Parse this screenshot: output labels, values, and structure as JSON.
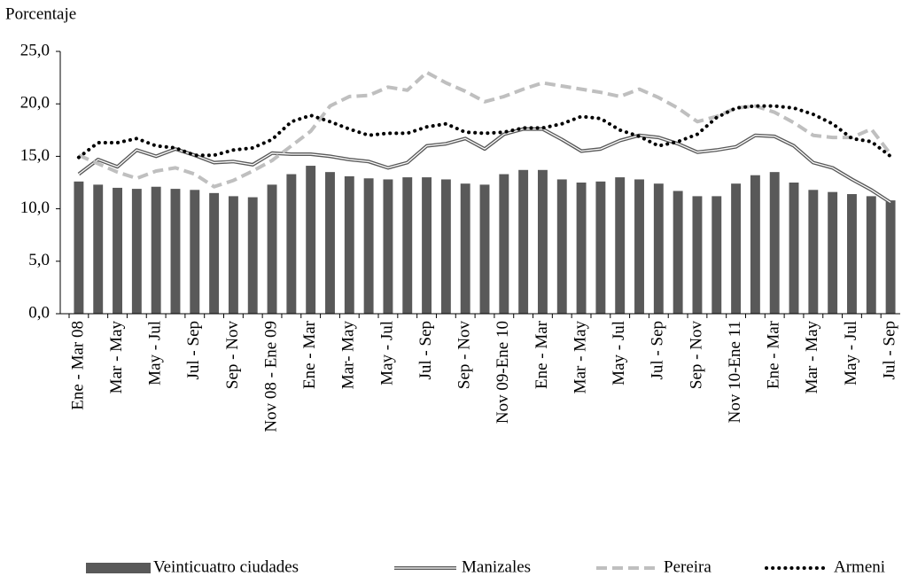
{
  "chart_data": {
    "type": "bar-line",
    "y_label": "Porcentaje",
    "categories": [
      "Ene - Mar 08",
      null,
      "Mar - May",
      null,
      "May - Jul",
      null,
      "Jul - Sep",
      null,
      "Sep - Nov",
      null,
      "Nov 08 - Ene 09",
      null,
      "Ene - Mar",
      null,
      "Mar- May",
      null,
      "May - Jul",
      null,
      "Jul - Sep",
      null,
      "Sep - Nov",
      null,
      "Nov 09-Ene 10",
      null,
      "Ene - Mar",
      null,
      "Mar - May",
      null,
      "May - Jul",
      null,
      "Jul - Sep",
      null,
      "Sep - Nov",
      null,
      "Nov 10-Ene 11",
      null,
      "Ene - Mar",
      null,
      "Mar - May",
      null,
      "May - Jul",
      null,
      "Jul - Sep"
    ],
    "series": [
      {
        "name": "Veinticuatro ciudades",
        "color": "#595959",
        "style": "bar",
        "values": [
          12.6,
          12.3,
          12.0,
          11.9,
          12.1,
          11.9,
          11.8,
          11.5,
          11.2,
          11.1,
          12.3,
          13.3,
          14.1,
          13.5,
          13.1,
          12.9,
          12.8,
          13.0,
          13.0,
          12.8,
          12.4,
          12.3,
          13.3,
          13.7,
          13.7,
          12.8,
          12.5,
          12.6,
          13.0,
          12.8,
          12.4,
          11.7,
          11.2,
          11.2,
          12.4,
          13.2,
          13.5,
          12.5,
          11.8,
          11.6,
          11.4,
          11.2,
          10.8
        ]
      },
      {
        "name": "Manizales",
        "color": "#595959",
        "style": "double",
        "values": [
          13.3,
          14.7,
          14.0,
          15.6,
          15.0,
          15.7,
          15.1,
          14.4,
          14.5,
          14.2,
          15.3,
          15.2,
          15.2,
          15.0,
          14.7,
          14.5,
          13.9,
          14.4,
          16.0,
          16.2,
          16.7,
          15.7,
          17.1,
          17.6,
          17.6,
          16.6,
          15.5,
          15.7,
          16.5,
          17.0,
          16.8,
          16.2,
          15.4,
          15.6,
          15.9,
          17.0,
          16.9,
          16.0,
          14.4,
          13.9,
          12.8,
          11.8,
          10.6
        ]
      },
      {
        "name": "Pereira",
        "color": "#bfbfbf",
        "style": "dashed",
        "values": [
          15.1,
          14.3,
          13.5,
          12.9,
          13.6,
          13.9,
          13.3,
          12.1,
          12.7,
          13.6,
          14.6,
          16.0,
          17.4,
          19.8,
          20.7,
          20.8,
          21.6,
          21.3,
          23.0,
          22.0,
          21.2,
          20.2,
          20.7,
          21.4,
          22.0,
          21.7,
          21.4,
          21.1,
          20.7,
          21.4,
          20.6,
          19.6,
          18.3,
          18.8,
          19.6,
          19.8,
          19.2,
          18.2,
          17.0,
          16.8,
          16.8,
          17.6,
          15.2
        ]
      },
      {
        "name": "Armeni",
        "color": "#000000",
        "style": "dotted",
        "values": [
          14.9,
          16.3,
          16.3,
          16.7,
          16.0,
          15.8,
          15.1,
          15.1,
          15.6,
          15.8,
          16.6,
          18.3,
          18.9,
          18.3,
          17.6,
          17.0,
          17.2,
          17.2,
          17.8,
          18.1,
          17.3,
          17.2,
          17.3,
          17.7,
          17.7,
          18.1,
          18.8,
          18.6,
          17.5,
          16.9,
          16.0,
          16.4,
          17.1,
          18.7,
          19.6,
          19.8,
          19.8,
          19.6,
          19.0,
          18.1,
          16.7,
          16.4,
          15.0
        ]
      }
    ],
    "ylim": [
      0,
      25
    ],
    "yticks": [
      {
        "value": 0,
        "label": "0,0"
      },
      {
        "value": 5,
        "label": "5,0"
      },
      {
        "value": 10,
        "label": "10,0"
      },
      {
        "value": 15,
        "label": "15,0"
      },
      {
        "value": 20,
        "label": "20,0"
      },
      {
        "value": 25,
        "label": "25,0"
      }
    ],
    "legend": "bottom"
  }
}
